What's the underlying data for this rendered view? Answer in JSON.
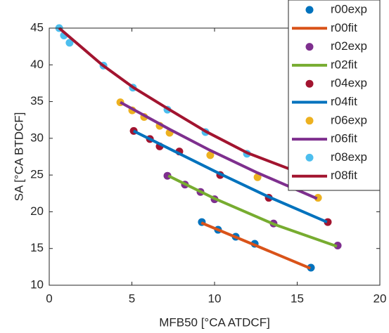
{
  "chart_data": {
    "type": "scatter",
    "xlabel": "MFB50 [°CA ATDCF]",
    "ylabel": "SA [°CA BTDCF]",
    "xlim": [
      0,
      20
    ],
    "ylim": [
      10,
      45
    ],
    "xticks": [
      0,
      5,
      10,
      15,
      20
    ],
    "yticks": [
      10,
      15,
      20,
      25,
      30,
      35,
      40,
      45
    ],
    "legend": "top-right",
    "series": [
      {
        "name": "r00exp",
        "style": "marker",
        "color": "#0072BD",
        "x": [
          9.23,
          10.21,
          11.28,
          12.43,
          15.83
        ],
        "values": [
          18.6,
          17.55,
          16.6,
          15.64,
          12.39
        ]
      },
      {
        "name": "r00fit",
        "style": "line",
        "color": "#D95319",
        "x": [
          9.2,
          12.5,
          15.8
        ],
        "values": [
          18.5,
          15.4,
          12.3
        ]
      },
      {
        "name": "r02exp",
        "style": "marker",
        "color": "#7E2F8E",
        "x": [
          7.15,
          8.21,
          9.15,
          10.0,
          13.57,
          17.45
        ],
        "values": [
          24.9,
          23.7,
          22.7,
          21.7,
          18.4,
          15.4
        ]
      },
      {
        "name": "r02fit",
        "style": "line",
        "color": "#77AC30",
        "x": [
          7.2,
          10.0,
          13.6,
          17.4
        ],
        "values": [
          24.9,
          21.8,
          18.3,
          15.3
        ]
      },
      {
        "name": "r04exp",
        "style": "marker",
        "color": "#A2142F",
        "x": [
          5.11,
          6.09,
          6.68,
          7.87,
          10.34,
          13.28,
          16.85
        ],
        "values": [
          31.0,
          29.9,
          28.9,
          28.2,
          25.0,
          21.9,
          18.6
        ]
      },
      {
        "name": "r04fit",
        "style": "line",
        "color": "#0072BD",
        "x": [
          5.1,
          10.3,
          13.3,
          16.8
        ],
        "values": [
          31.0,
          25.2,
          22.0,
          18.6
        ]
      },
      {
        "name": "r06exp",
        "style": "marker",
        "color": "#EDB120",
        "x": [
          4.3,
          5.02,
          5.74,
          6.68,
          7.28,
          9.74,
          12.6,
          16.26
        ],
        "values": [
          34.9,
          33.8,
          32.9,
          31.7,
          30.75,
          27.7,
          24.7,
          21.9
        ]
      },
      {
        "name": "r06fit",
        "style": "line",
        "color": "#7E2F8E",
        "x": [
          4.3,
          7.3,
          9.7,
          12.6,
          16.2
        ],
        "values": [
          34.9,
          31.2,
          28.4,
          25.3,
          21.8
        ]
      },
      {
        "name": "r08exp",
        "style": "marker",
        "color": "#4DBEEE",
        "x": [
          0.6,
          0.89,
          1.23,
          3.28,
          5.06,
          7.15,
          9.45,
          11.96
        ],
        "values": [
          45.0,
          44.0,
          43.0,
          39.9,
          36.9,
          33.9,
          30.85,
          27.9
        ]
      },
      {
        "name": "r08fit",
        "style": "line",
        "color": "#A2142F",
        "x": [
          0.6,
          3.2,
          5.1,
          7.2,
          9.5,
          12.0,
          14.8
        ],
        "values": [
          45.0,
          40.0,
          36.9,
          34.0,
          30.9,
          28.0,
          25.6
        ]
      }
    ]
  }
}
